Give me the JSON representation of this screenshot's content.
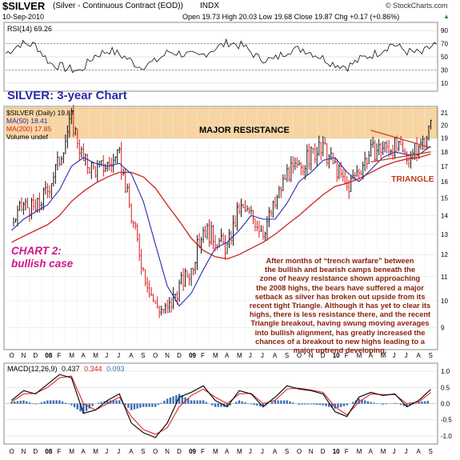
{
  "header": {
    "symbol": "$SILVER",
    "description": "(Silver - Continuous Contract (EOD))",
    "exchange": "INDX",
    "date": "10-Sep-2010",
    "quote": "Open 19.73  High 20.03  Low 19.68  Close 19.87  Chg +0.17 (+0.86%)",
    "quote_arrow": "▲",
    "brand": "© StockCharts.com"
  },
  "colors": {
    "price_up": "#111111",
    "price_down": "#d81818",
    "ma50": "#2a2ab0",
    "ma200": "#cc2222",
    "resistance_band": "#f8d4a0",
    "macd_line": "#111111",
    "signal_line": "#d81818",
    "histogram": "#3a6fb8",
    "rsi_line": "#111111",
    "rsi_fill": "#6a9c4a",
    "title_blue": "#2a2aa8",
    "chart2_magenta": "#d0168a",
    "annotation_brown": "#8a1e0a",
    "triangle_label": "#c04020"
  },
  "chart_data": [
    {
      "type": "line",
      "panel": "rsi",
      "title": "RSI(14) 69.26",
      "ylim": [
        0,
        100
      ],
      "y_ticks": [
        "90",
        "70",
        "50",
        "30",
        "10"
      ],
      "levels": [
        70,
        30
      ],
      "last_value": 69.26,
      "approx_series": [
        55,
        70,
        68,
        40,
        33,
        28,
        52,
        60,
        50,
        35,
        42,
        58,
        54,
        50,
        62,
        72,
        66,
        48,
        45,
        60,
        62,
        52,
        40,
        35,
        48,
        56,
        70,
        58,
        55,
        72
      ]
    },
    {
      "type": "line",
      "panel": "price",
      "title": "$SILVER (Daily) 19.87",
      "ylim": [
        8.3,
        21.4
      ],
      "log_scale": true,
      "y_ticks": [
        21,
        20,
        19,
        18,
        17,
        16,
        15,
        14,
        13,
        12,
        11,
        10,
        9
      ],
      "x_labels": [
        "O",
        "N",
        "D",
        "08",
        "F",
        "M",
        "A",
        "M",
        "J",
        "J",
        "A",
        "S",
        "O",
        "N",
        "D",
        "09",
        "F",
        "M",
        "A",
        "M",
        "J",
        "J",
        "A",
        "S",
        "O",
        "N",
        "D",
        "10",
        "F",
        "M",
        "A",
        "M",
        "J",
        "J",
        "A",
        "S"
      ],
      "series": [
        {
          "name": "$SILVER (Daily) 19.87",
          "months": [
            "2007-10",
            "2007-11",
            "2007-12",
            "2008-01",
            "2008-02",
            "2008-03",
            "2008-04",
            "2008-05",
            "2008-06",
            "2008-07",
            "2008-08",
            "2008-09",
            "2008-10",
            "2008-11",
            "2008-12",
            "2009-01",
            "2009-02",
            "2009-03",
            "2009-04",
            "2009-05",
            "2009-06",
            "2009-07",
            "2009-08",
            "2009-09",
            "2009-10",
            "2009-11",
            "2009-12",
            "2010-01",
            "2010-02",
            "2010-03",
            "2010-04",
            "2010-05",
            "2010-06",
            "2010-07",
            "2010-08",
            "2010-09"
          ],
          "values": [
            13.5,
            14.6,
            14.3,
            15.5,
            17.5,
            20.5,
            17.3,
            16.8,
            17.1,
            17.6,
            13.9,
            11.3,
            9.8,
            9.6,
            10.6,
            11.3,
            13.3,
            12.8,
            12.3,
            14.4,
            14.0,
            13.2,
            14.6,
            16.6,
            16.8,
            17.8,
            18.2,
            17.0,
            15.6,
            16.8,
            18.0,
            18.3,
            18.4,
            17.6,
            18.2,
            19.87
          ]
        },
        {
          "name": "MA(50) 18.41",
          "values": [
            13.2,
            13.8,
            14.2,
            14.6,
            15.5,
            17.0,
            17.6,
            17.2,
            17.0,
            17.2,
            16.5,
            14.8,
            12.5,
            10.6,
            9.8,
            10.3,
            11.3,
            12.3,
            12.6,
            13.2,
            14.0,
            13.8,
            13.8,
            14.7,
            16.0,
            16.6,
            17.4,
            17.6,
            16.6,
            16.0,
            16.8,
            17.6,
            18.0,
            17.8,
            17.8,
            18.41
          ]
        },
        {
          "name": "MA(200) 17.85",
          "values": [
            12.6,
            12.9,
            13.2,
            13.5,
            14.0,
            14.8,
            15.4,
            15.9,
            16.3,
            16.6,
            16.6,
            16.3,
            15.6,
            14.6,
            13.7,
            12.8,
            12.2,
            11.9,
            11.8,
            12.0,
            12.3,
            12.6,
            13.0,
            13.5,
            14.0,
            14.6,
            15.2,
            15.7,
            15.9,
            16.2,
            16.6,
            17.0,
            17.3,
            17.5,
            17.6,
            17.85
          ]
        }
      ],
      "legend": [
        "$SILVER (Daily) 19.87",
        "MA(50) 18.41",
        "MA(200) 17.85",
        "Volume undef"
      ],
      "annotations": [
        "MAJOR RESISTANCE",
        "TRIANGLE"
      ]
    },
    {
      "type": "line",
      "panel": "macd",
      "title": "MACD(12,26,9)",
      "title_values": [
        "0.437",
        "0.344",
        "0.093"
      ],
      "ylim": [
        -1.2,
        1.2
      ],
      "y_ticks": [
        "1.0",
        "0.5",
        "0.0",
        "-0.5",
        "-1.0"
      ],
      "x_labels": [
        "O",
        "N",
        "D",
        "08",
        "F",
        "M",
        "A",
        "M",
        "J",
        "J",
        "A",
        "S",
        "O",
        "N",
        "D",
        "09",
        "F",
        "M",
        "A",
        "M",
        "J",
        "J",
        "A",
        "S",
        "O",
        "N",
        "D",
        "10",
        "F",
        "M",
        "A",
        "M",
        "J",
        "J",
        "A",
        "S"
      ],
      "series": [
        {
          "name": "MACD",
          "values": [
            0.1,
            0.4,
            0.3,
            0.6,
            0.9,
            0.8,
            -0.3,
            -0.2,
            0.1,
            0.3,
            -0.6,
            -0.9,
            -1.05,
            -0.6,
            0.2,
            0.35,
            0.55,
            0.1,
            -0.1,
            0.4,
            0.3,
            -0.1,
            0.2,
            0.55,
            0.45,
            0.4,
            0.3,
            -0.25,
            -0.4,
            0.2,
            0.35,
            0.25,
            0.3,
            -0.1,
            0.1,
            0.437
          ]
        },
        {
          "name": "Signal",
          "values": [
            0.05,
            0.3,
            0.32,
            0.5,
            0.8,
            0.85,
            0.0,
            -0.2,
            0.0,
            0.2,
            -0.4,
            -0.8,
            -0.95,
            -0.75,
            -0.1,
            0.25,
            0.45,
            0.2,
            0.0,
            0.3,
            0.32,
            0.0,
            0.1,
            0.45,
            0.48,
            0.42,
            0.35,
            -0.1,
            -0.35,
            0.05,
            0.3,
            0.28,
            0.28,
            0.0,
            0.05,
            0.344
          ]
        }
      ],
      "histogram_last": 0.093
    }
  ],
  "annotations": {
    "chart_title": "SILVER: 3-year Chart",
    "chart2": [
      "CHART 2:",
      "bullish case"
    ],
    "commentary": [
      "After months of “trench warfare” between",
      "the bullish and bearish camps beneath the",
      "zone of heavy resistance shown approaching",
      "the 2008 highs, the bears have suffered a major",
      "setback as silver has broken out upside from its",
      "recent tight Triangle. Although it has yet to clear its",
      "highs, there is less resistance there, and the recent",
      "Triangle breakout, having swung moving averages",
      "into bullish alignment, has greatly increased the",
      "chances of a breakout to new highs leading to a",
      "major uptrend developing."
    ]
  }
}
